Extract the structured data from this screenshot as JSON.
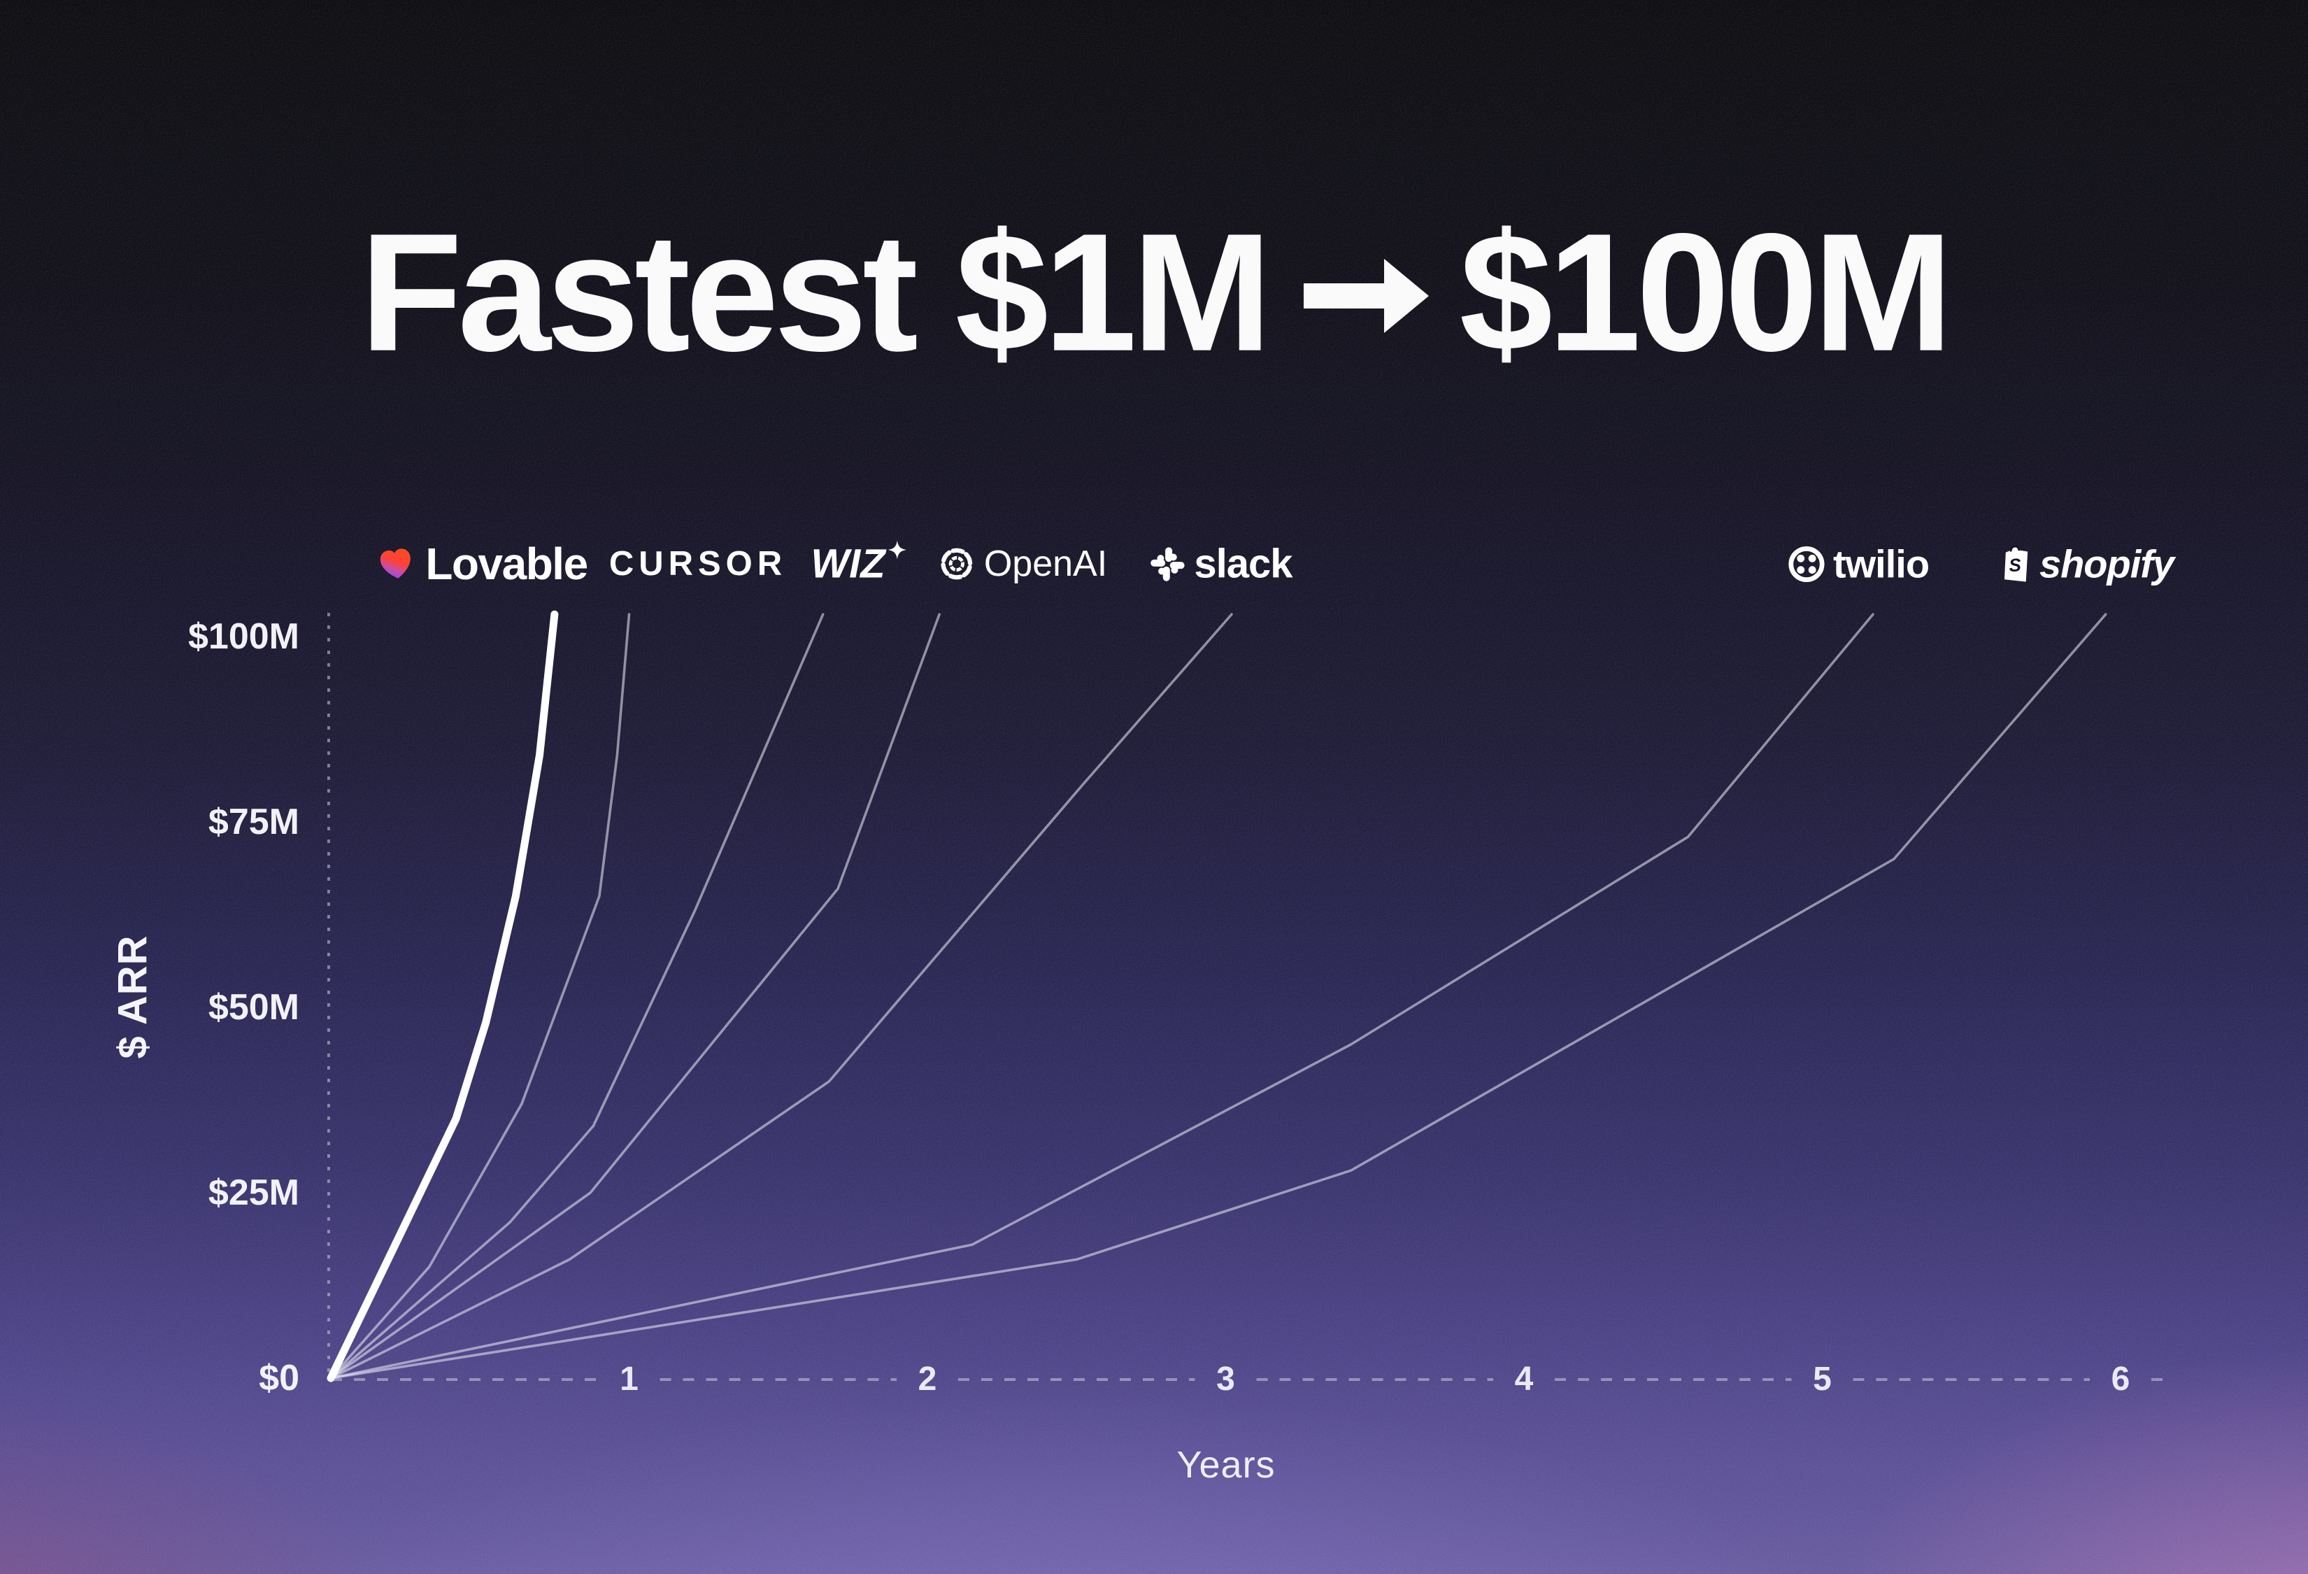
{
  "title": {
    "full": "Fastest $1M → $100M",
    "prefix": "Fastest $1M",
    "suffix": "$100M"
  },
  "axes": {
    "y_axis_label": "$ ARR",
    "x_axis_label": "Years",
    "y_ticks": [
      {
        "label": "$100M",
        "value": 100
      },
      {
        "label": "$75M",
        "value": 75
      },
      {
        "label": "$50M",
        "value": 50
      },
      {
        "label": "$25M",
        "value": 25
      },
      {
        "label": "$0",
        "value": 0
      }
    ],
    "x_ticks": [
      {
        "label": "1",
        "value": 1
      },
      {
        "label": "2",
        "value": 2
      },
      {
        "label": "3",
        "value": 3
      },
      {
        "label": "4",
        "value": 4
      },
      {
        "label": "5",
        "value": 5
      },
      {
        "label": "6",
        "value": 6
      }
    ]
  },
  "companies": [
    {
      "name": "Lovable",
      "logo_text": "Lovable",
      "icon": "lovable-heart-icon",
      "icon_after": false
    },
    {
      "name": "Cursor",
      "logo_text": "CURSOR",
      "icon": null,
      "icon_after": false
    },
    {
      "name": "Wiz",
      "logo_text": "WIZ",
      "icon": "wiz-sparkle-icon",
      "icon_after": true
    },
    {
      "name": "OpenAI",
      "logo_text": "OpenAI",
      "icon": "openai-icon",
      "icon_after": false
    },
    {
      "name": "Slack",
      "logo_text": "slack",
      "icon": "slack-icon",
      "icon_after": false
    },
    {
      "name": "Twilio",
      "logo_text": "twilio",
      "icon": "twilio-icon",
      "icon_after": false
    },
    {
      "name": "Shopify",
      "logo_text": "shopify",
      "icon": "shopify-bag-icon",
      "icon_after": false
    }
  ],
  "chart_data": {
    "type": "line",
    "title": "Fastest $1M → $100M",
    "xlabel": "Years",
    "ylabel": "$ ARR",
    "xlim": [
      0,
      6.15
    ],
    "ylim": [
      0,
      103
    ],
    "grid": false,
    "legend": "logos above each curve end",
    "units": {
      "x": "years",
      "y": "$M ARR"
    },
    "series": [
      {
        "name": "Lovable",
        "highlight": true,
        "years_to_100m": 0.75,
        "points": [
          [
            0,
            0
          ],
          [
            0.42,
            35
          ],
          [
            0.52,
            48
          ],
          [
            0.62,
            65
          ],
          [
            0.7,
            84
          ],
          [
            0.75,
            103
          ]
        ]
      },
      {
        "name": "Cursor",
        "highlight": false,
        "years_to_100m": 1.0,
        "points": [
          [
            0,
            0
          ],
          [
            0.33,
            15
          ],
          [
            0.64,
            37
          ],
          [
            0.9,
            65
          ],
          [
            0.96,
            84
          ],
          [
            1.0,
            103
          ]
        ]
      },
      {
        "name": "Wiz",
        "highlight": false,
        "years_to_100m": 1.65,
        "points": [
          [
            0,
            0
          ],
          [
            0.6,
            21
          ],
          [
            0.88,
            34
          ],
          [
            1.22,
            63
          ],
          [
            1.65,
            103
          ]
        ]
      },
      {
        "name": "OpenAI",
        "highlight": false,
        "years_to_100m": 2.04,
        "points": [
          [
            0,
            0
          ],
          [
            0.87,
            25
          ],
          [
            1.7,
            66
          ],
          [
            2.04,
            103
          ]
        ]
      },
      {
        "name": "Slack",
        "highlight": false,
        "years_to_100m": 3.02,
        "points": [
          [
            0,
            0
          ],
          [
            0.8,
            16
          ],
          [
            1.67,
            40
          ],
          [
            2.52,
            80
          ],
          [
            3.02,
            103
          ]
        ]
      },
      {
        "name": "Twilio",
        "highlight": false,
        "years_to_100m": 5.17,
        "points": [
          [
            0,
            0
          ],
          [
            2.15,
            18
          ],
          [
            3.42,
            45
          ],
          [
            4.55,
            73
          ],
          [
            5.17,
            103
          ]
        ]
      },
      {
        "name": "Shopify",
        "highlight": false,
        "years_to_100m": 5.95,
        "points": [
          [
            0,
            0
          ],
          [
            2.5,
            16
          ],
          [
            3.42,
            28
          ],
          [
            5.24,
            70
          ],
          [
            5.95,
            103
          ]
        ]
      }
    ]
  },
  "colors": {
    "text": "#fafafa",
    "highlight_line": "#ffffff",
    "thin_line": "rgba(238,238,248,0.55)",
    "axis_dash": "rgba(205,203,222,0.55)",
    "background_top": "#050508",
    "background_bottom": "#63569b",
    "lovable_gradient": [
      "#ff4a26",
      "#9a4ce0"
    ]
  }
}
